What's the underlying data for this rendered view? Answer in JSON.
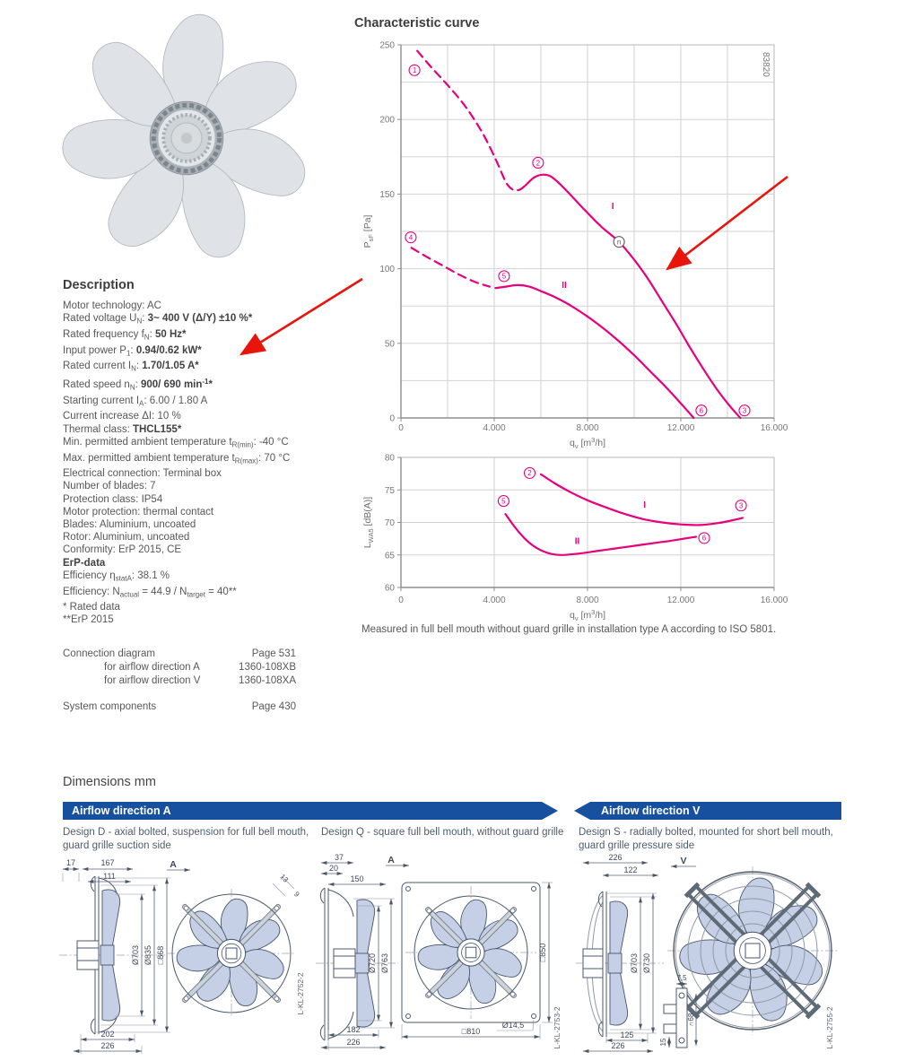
{
  "colors": {
    "accent_pink": "#e6007e",
    "arrow_red": "#e8150b",
    "banner_blue": "#17509f",
    "blade_fill": "#c5cfe5"
  },
  "charts": {
    "title": "Characteristic curve",
    "caption": "Measured in full bell mouth without guard grille in installation type A according to ISO 5801."
  },
  "chart_data": [
    {
      "type": "line",
      "title": "Static pressure vs. volume flow",
      "color": "#e6007e",
      "xlim": [
        0,
        16000
      ],
      "ylim": [
        0,
        250
      ],
      "grid": true,
      "legend_position": "none",
      "watermark": "83820",
      "xticks": [
        {
          "v": 0,
          "label": "0"
        },
        {
          "v": 4000,
          "label": "4.000"
        },
        {
          "v": 8000,
          "label": "8.000"
        },
        {
          "v": 12000,
          "label": "12.000"
        },
        {
          "v": 16000,
          "label": "16.000"
        }
      ],
      "yticks": [
        {
          "v": 0,
          "label": "0"
        },
        {
          "v": 50,
          "label": "50"
        },
        {
          "v": 100,
          "label": "100"
        },
        {
          "v": 150,
          "label": "150"
        },
        {
          "v": 200,
          "label": "200"
        },
        {
          "v": 250,
          "label": "250"
        }
      ],
      "xlabel": [
        {
          "t": "q"
        },
        {
          "t": "v",
          "s": "sub"
        },
        {
          "t": " [m"
        },
        {
          "t": "3",
          "s": "sup"
        },
        {
          "t": "/h]"
        }
      ],
      "ylabel": [
        {
          "t": "P"
        },
        {
          "t": "sF",
          "s": "sub"
        },
        {
          "t": " [Pa]"
        }
      ],
      "series": [
        {
          "name": "curve-I-unstable-dashed",
          "style": "dashed",
          "points": [
            [
              700,
              246
            ],
            [
              1300,
              235
            ],
            [
              2000,
              223
            ],
            [
              2600,
              212
            ],
            [
              3100,
              201
            ],
            [
              3600,
              188
            ],
            [
              4100,
              172
            ],
            [
              4500,
              158
            ],
            [
              4800,
              153
            ],
            [
              5100,
              153
            ],
            [
              5350,
              156
            ]
          ]
        },
        {
          "name": "curve-I-solid",
          "style": "solid",
          "points": [
            [
              5350,
              156
            ],
            [
              5700,
              161
            ],
            [
              6050,
              163
            ],
            [
              6400,
              162
            ],
            [
              6800,
              157
            ],
            [
              7300,
              149
            ],
            [
              7900,
              139
            ],
            [
              8600,
              128
            ],
            [
              9350,
              118
            ],
            [
              10000,
              106
            ],
            [
              10600,
              93
            ],
            [
              11200,
              78
            ],
            [
              11800,
              63
            ],
            [
              12400,
              47
            ],
            [
              13000,
              32
            ],
            [
              13600,
              18
            ],
            [
              14100,
              8
            ],
            [
              14550,
              0
            ]
          ]
        },
        {
          "name": "curve-II-unstable-dashed",
          "style": "dashed",
          "points": [
            [
              450,
              114
            ],
            [
              1100,
              108
            ],
            [
              1800,
              102
            ],
            [
              2500,
              96
            ],
            [
              3200,
              91
            ],
            [
              3800,
              88
            ]
          ]
        },
        {
          "name": "curve-II-solid",
          "style": "solid",
          "points": [
            [
              4050,
              87
            ],
            [
              4500,
              88
            ],
            [
              5000,
              89
            ],
            [
              5500,
              88
            ],
            [
              6000,
              85
            ],
            [
              6600,
              81
            ],
            [
              7200,
              76
            ],
            [
              7900,
              69
            ],
            [
              8600,
              61
            ],
            [
              9300,
              52
            ],
            [
              10000,
              42
            ],
            [
              10700,
              31
            ],
            [
              11400,
              20
            ],
            [
              12100,
              8
            ],
            [
              12550,
              0
            ]
          ]
        }
      ],
      "curve_labels": [
        {
          "t": "I",
          "x": 9080,
          "y": 140
        },
        {
          "t": "II",
          "x": 7000,
          "y": 87
        }
      ],
      "markers": [
        {
          "t": "1",
          "x": 580,
          "y": 233
        },
        {
          "t": "2",
          "x": 5880,
          "y": 171
        },
        {
          "t": "4",
          "x": 420,
          "y": 121
        },
        {
          "t": "5",
          "x": 4420,
          "y": 95
        },
        {
          "t": "n",
          "x": 9350,
          "y": 118,
          "dark": true
        },
        {
          "t": "6",
          "x": 12880,
          "y": 5
        },
        {
          "t": "3",
          "x": 14730,
          "y": 5
        }
      ]
    },
    {
      "type": "line",
      "title": "Sound power level vs. volume flow",
      "color": "#e6007e",
      "xlim": [
        0,
        16000
      ],
      "ylim": [
        60,
        80
      ],
      "grid": true,
      "legend_position": "none",
      "xticks": [
        {
          "v": 0,
          "label": "0"
        },
        {
          "v": 4000,
          "label": "4.000"
        },
        {
          "v": 8000,
          "label": "8.000"
        },
        {
          "v": 12000,
          "label": "12.000"
        },
        {
          "v": 16000,
          "label": "16.000"
        }
      ],
      "yticks": [
        {
          "v": 60,
          "label": "60"
        },
        {
          "v": 65,
          "label": "65"
        },
        {
          "v": 70,
          "label": "70"
        },
        {
          "v": 75,
          "label": "75"
        },
        {
          "v": 80,
          "label": "80"
        }
      ],
      "xlabel": [
        {
          "t": "q"
        },
        {
          "t": "v",
          "s": "sub"
        },
        {
          "t": " [m"
        },
        {
          "t": "3",
          "s": "sup"
        },
        {
          "t": "/h]"
        }
      ],
      "ylabel": [
        {
          "t": "L"
        },
        {
          "t": "WA5",
          "s": "sub"
        },
        {
          "t": " [dB(A)]"
        }
      ],
      "series": [
        {
          "name": "noise-curve-I",
          "style": "solid",
          "points": [
            [
              6000,
              77.4
            ],
            [
              6600,
              76.0
            ],
            [
              7300,
              74.6
            ],
            [
              8000,
              73.4
            ],
            [
              8800,
              72.3
            ],
            [
              9600,
              71.3
            ],
            [
              10400,
              70.5
            ],
            [
              11200,
              70.0
            ],
            [
              12000,
              69.7
            ],
            [
              12800,
              69.6
            ],
            [
              13600,
              69.9
            ],
            [
              14300,
              70.4
            ],
            [
              14650,
              70.7
            ]
          ]
        },
        {
          "name": "noise-curve-II",
          "style": "solid",
          "points": [
            [
              4480,
              71.3
            ],
            [
              4900,
              69.2
            ],
            [
              5400,
              67.2
            ],
            [
              5900,
              65.9
            ],
            [
              6400,
              65.2
            ],
            [
              6900,
              65.0
            ],
            [
              7600,
              65.2
            ],
            [
              8400,
              65.6
            ],
            [
              9200,
              66.0
            ],
            [
              10000,
              66.4
            ],
            [
              10800,
              66.8
            ],
            [
              11600,
              67.2
            ],
            [
              12300,
              67.6
            ],
            [
              12650,
              67.8
            ]
          ]
        }
      ],
      "curve_labels": [
        {
          "t": "I",
          "x": 10450,
          "y": 72.3
        },
        {
          "t": "II",
          "x": 7560,
          "y": 66.7
        }
      ],
      "markers": [
        {
          "t": "2",
          "x": 5520,
          "y": 77.6
        },
        {
          "t": "5",
          "x": 4400,
          "y": 73.3
        },
        {
          "t": "3",
          "x": 14580,
          "y": 72.6
        },
        {
          "t": "6",
          "x": 13000,
          "y": 67.6
        }
      ]
    }
  ],
  "description": {
    "heading": "Description",
    "lines": [
      [
        {
          "t": "Motor technology: AC"
        }
      ],
      [
        {
          "t": "Rated voltage U"
        },
        {
          "t": "N",
          "s": "sub"
        },
        {
          "t": ": "
        },
        {
          "t": "3~ 400 V (Δ/Y) ±10 %*",
          "s": "b"
        }
      ],
      [
        {
          "t": "Rated frequency f"
        },
        {
          "t": "N",
          "s": "sub"
        },
        {
          "t": ": "
        },
        {
          "t": "50 Hz*",
          "s": "b"
        }
      ],
      [
        {
          "t": "Input power P"
        },
        {
          "t": "1",
          "s": "sub"
        },
        {
          "t": ": "
        },
        {
          "t": "0.94/0.62 kW*",
          "s": "b"
        }
      ],
      [
        {
          "t": "Rated current I"
        },
        {
          "t": "N",
          "s": "sub"
        },
        {
          "t": ": "
        },
        {
          "t": "1.70/1.05 A*",
          "s": "b"
        }
      ],
      [
        {
          "t": "Rated speed n"
        },
        {
          "t": "N",
          "s": "sub"
        },
        {
          "t": ": "
        },
        {
          "t": "900/ 690 min",
          "s": "b"
        },
        {
          "t": "-1",
          "s": "bsup"
        },
        {
          "t": "*",
          "s": "b"
        }
      ],
      [
        {
          "t": "Starting current I"
        },
        {
          "t": "A",
          "s": "sub"
        },
        {
          "t": ": 6.00 / 1.80 A"
        }
      ],
      [
        {
          "t": "Current increase ΔI: 10 %"
        }
      ],
      [
        {
          "t": "Thermal class: "
        },
        {
          "t": "THCL155*",
          "s": "b"
        }
      ],
      [
        {
          "t": "Min. permitted ambient temperature t"
        },
        {
          "t": "R(min)",
          "s": "sub"
        },
        {
          "t": ": -40 °C"
        }
      ],
      [
        {
          "t": "Max. permitted ambient temperature t"
        },
        {
          "t": "R(max)",
          "s": "sub"
        },
        {
          "t": ": 70 °C"
        }
      ],
      [
        {
          "t": "Electrical connection: Terminal box"
        }
      ],
      [
        {
          "t": "Number of blades: 7"
        }
      ],
      [
        {
          "t": "Protection class: IP54"
        }
      ],
      [
        {
          "t": "Motor protection: thermal contact"
        }
      ],
      [
        {
          "t": "Blades: Aluminium, uncoated"
        }
      ],
      [
        {
          "t": "Rotor: Aluminium, uncoated"
        }
      ],
      [
        {
          "t": "Conformity: ErP 2015, CE"
        }
      ],
      [
        {
          "t": "ErP-data",
          "s": "b"
        }
      ],
      [
        {
          "t": "Efficiency η"
        },
        {
          "t": "statA",
          "s": "sub"
        },
        {
          "t": ": 38.1 %"
        }
      ],
      [
        {
          "t": "Efficiency: N"
        },
        {
          "t": "actual",
          "s": "sub"
        },
        {
          "t": " = 44.9 / N"
        },
        {
          "t": "target",
          "s": "sub"
        },
        {
          "t": " = 40**"
        }
      ],
      [
        {
          "t": "* Rated data"
        }
      ],
      [
        {
          "t": "**ErP 2015"
        }
      ]
    ]
  },
  "connection": {
    "rows": [
      {
        "label": "Connection diagram",
        "value": "Page 531",
        "indent": false
      },
      {
        "label": "for airflow direction A",
        "value": "1360-108XB",
        "indent": true
      },
      {
        "label": "for airflow direction V",
        "value": "1360-108XA",
        "indent": true
      },
      {
        "spacer": true
      },
      {
        "label": "System components",
        "value": "Page 430",
        "indent": false
      }
    ]
  },
  "dimensions": {
    "title": "Dimensions mm",
    "banners": [
      {
        "label": "Airflow direction A"
      },
      {
        "label": "Airflow direction V"
      }
    ],
    "designs": [
      {
        "caption": "Design D - axial bolted, suspension for full bell mouth, guard grille suction side",
        "view_label": "A",
        "top": [
          "17",
          "167",
          "111"
        ],
        "vertical": [
          "Ø703",
          "Ø835",
          "□868"
        ],
        "bottom": [
          "202",
          "226"
        ],
        "diag": [
          "13",
          "9"
        ],
        "code": "L-KL-2752-2"
      },
      {
        "caption": "Design Q - square full bell mouth, without guard grille",
        "view_label": "A",
        "top": [
          "37",
          "20",
          "150"
        ],
        "vertical": [
          "Ø720",
          "Ø763"
        ],
        "right": "□850",
        "plate_bottom": "□810",
        "hole": "Ø14,5",
        "bottom": [
          "182",
          "226"
        ],
        "code": "L-KL-2753-2"
      },
      {
        "caption": "Design S - radially bolted, mounted for short bell mouth, guard grille pressure side",
        "view_label": "V",
        "top": [
          "226",
          "122"
        ],
        "vertical": [
          "Ø703",
          "Ø730"
        ],
        "bottom": [
          "125",
          "226"
        ],
        "bracket": [
          "7,5",
          "∩68",
          "15"
        ],
        "code": "L-KL-2755-2"
      }
    ]
  }
}
